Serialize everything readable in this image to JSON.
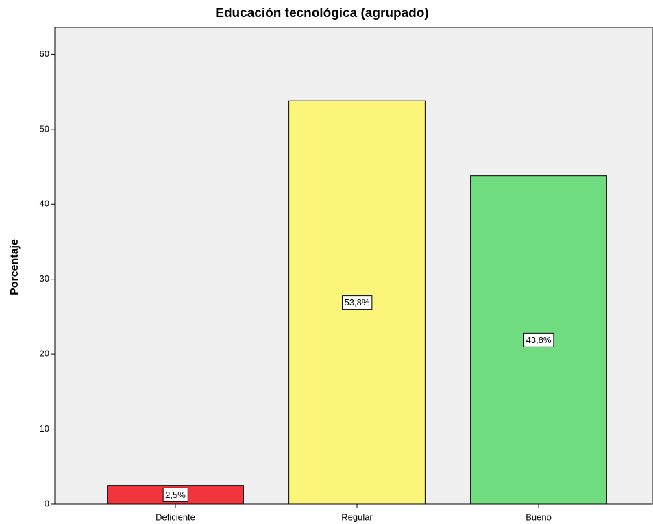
{
  "chart_data": {
    "type": "bar",
    "title": "Educación tecnológica (agrupado)",
    "y_label": "Porcentaje",
    "categories": [
      "Deficiente",
      "Regular",
      "Bueno"
    ],
    "values": [
      2.5,
      53.8,
      43.8
    ],
    "value_labels": [
      "2,5%",
      "53,8%",
      "43,8%"
    ],
    "colors": [
      "#f0353d",
      "#fbf679",
      "#6fdc80"
    ],
    "ylim": [
      0,
      63.6
    ],
    "yticks": [
      0,
      10,
      20,
      30,
      40,
      50,
      60
    ],
    "grid": false
  }
}
